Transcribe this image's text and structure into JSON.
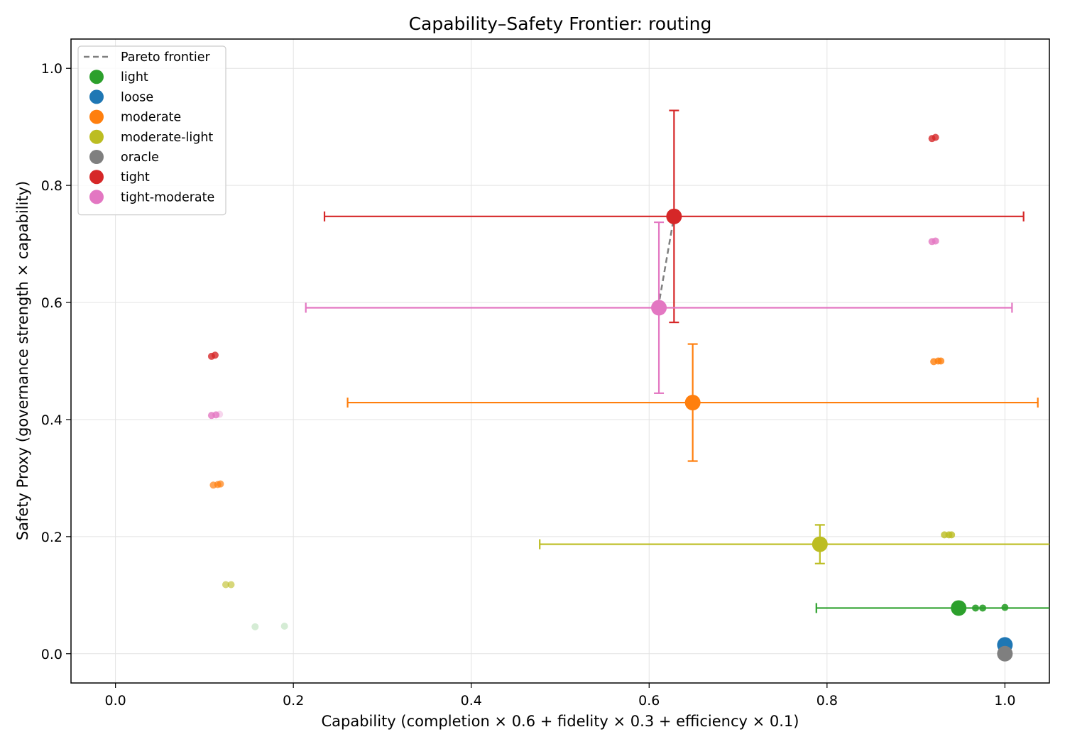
{
  "chart_data": {
    "type": "scatter",
    "title": "Capability–Safety Frontier: routing",
    "xlabel": "Capability (completion × 0.6 + fidelity × 0.3 + efficiency × 0.1)",
    "ylabel": "Safety Proxy (governance strength × capability)",
    "xlim": [
      -0.05,
      1.05
    ],
    "ylim": [
      -0.05,
      1.05
    ],
    "xticks": [
      "0.0",
      "0.2",
      "0.4",
      "0.6",
      "0.8",
      "1.0"
    ],
    "yticks": [
      "0.0",
      "0.2",
      "0.4",
      "0.6",
      "0.8",
      "1.0"
    ],
    "grid": true,
    "legend_position": "top-left",
    "frontier": {
      "name": "Pareto frontier",
      "color": "#7f7f7f",
      "points": [
        [
          0.61,
          0.59
        ],
        [
          0.628,
          0.747
        ]
      ]
    },
    "series": [
      {
        "name": "light",
        "color": "#2ca02c",
        "mean": {
          "x": 0.948,
          "y": 0.078,
          "xerr": 0.16,
          "yerr": 0.0
        },
        "runs": [
          {
            "x": 0.967,
            "y": 0.078,
            "alpha": 0.9
          },
          {
            "x": 0.975,
            "y": 0.078,
            "alpha": 0.9
          },
          {
            "x": 1.0,
            "y": 0.079,
            "alpha": 0.9
          },
          {
            "x": 0.157,
            "y": 0.046,
            "alpha": 0.2
          },
          {
            "x": 0.19,
            "y": 0.047,
            "alpha": 0.2
          }
        ]
      },
      {
        "name": "loose",
        "color": "#1f77b4",
        "mean": {
          "x": 1.0,
          "y": 0.015,
          "xerr": 0.0,
          "yerr": 0.0
        },
        "runs": []
      },
      {
        "name": "moderate",
        "color": "#ff7f0e",
        "mean": {
          "x": 0.649,
          "y": 0.429,
          "xerr": 0.388,
          "yerr": 0.1
        },
        "runs": [
          {
            "x": 0.92,
            "y": 0.499,
            "alpha": 0.8
          },
          {
            "x": 0.925,
            "y": 0.5,
            "alpha": 0.8
          },
          {
            "x": 0.928,
            "y": 0.5,
            "alpha": 0.8
          },
          {
            "x": 0.11,
            "y": 0.288,
            "alpha": 0.7
          },
          {
            "x": 0.115,
            "y": 0.289,
            "alpha": 0.7
          },
          {
            "x": 0.118,
            "y": 0.29,
            "alpha": 0.7
          }
        ]
      },
      {
        "name": "moderate-light",
        "color": "#bcbd22",
        "mean": {
          "x": 0.792,
          "y": 0.187,
          "xerr": 0.315,
          "yerr": 0.033
        },
        "runs": [
          {
            "x": 0.932,
            "y": 0.203,
            "alpha": 0.8
          },
          {
            "x": 0.937,
            "y": 0.203,
            "alpha": 0.8
          },
          {
            "x": 0.94,
            "y": 0.203,
            "alpha": 0.8
          },
          {
            "x": 0.124,
            "y": 0.118,
            "alpha": 0.6
          },
          {
            "x": 0.13,
            "y": 0.118,
            "alpha": 0.6
          }
        ]
      },
      {
        "name": "oracle",
        "color": "#7f7f7f",
        "mean": {
          "x": 1.0,
          "y": 0.0,
          "xerr": 0.0,
          "yerr": 0.0
        },
        "runs": []
      },
      {
        "name": "tight",
        "color": "#d62728",
        "mean": {
          "x": 0.628,
          "y": 0.747,
          "xerr": 0.393,
          "yerr": 0.181
        },
        "runs": [
          {
            "x": 0.918,
            "y": 0.88,
            "alpha": 0.8
          },
          {
            "x": 0.922,
            "y": 0.882,
            "alpha": 0.8
          },
          {
            "x": 0.108,
            "y": 0.508,
            "alpha": 0.8
          },
          {
            "x": 0.112,
            "y": 0.51,
            "alpha": 0.8
          }
        ]
      },
      {
        "name": "tight-moderate",
        "color": "#e377c2",
        "mean": {
          "x": 0.611,
          "y": 0.591,
          "xerr": 0.397,
          "yerr": 0.146
        },
        "runs": [
          {
            "x": 0.918,
            "y": 0.704,
            "alpha": 0.8
          },
          {
            "x": 0.922,
            "y": 0.705,
            "alpha": 0.8
          },
          {
            "x": 0.108,
            "y": 0.407,
            "alpha": 0.8
          },
          {
            "x": 0.113,
            "y": 0.408,
            "alpha": 0.8
          },
          {
            "x": 0.117,
            "y": 0.409,
            "alpha": 0.3
          }
        ]
      }
    ]
  }
}
